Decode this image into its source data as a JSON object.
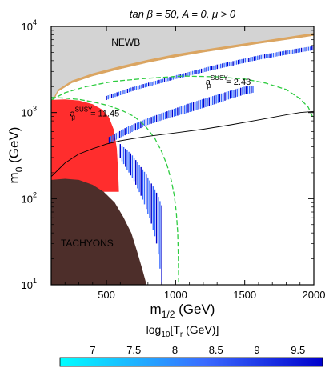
{
  "chart_data": {
    "type": "scatter",
    "title": "tan β = 50, A = 0, μ > 0",
    "xlabel": {
      "base": "m",
      "sub": "1/2",
      "rest": " (GeV)"
    },
    "ylabel": {
      "base": "m",
      "sub": "0",
      "rest": " (GeV)"
    },
    "x_scale": "linear",
    "y_scale": "log",
    "xlim": [
      100,
      2000
    ],
    "ylim": [
      10,
      10000
    ],
    "grid": false,
    "x_ticks": [
      {
        "value": 500,
        "label": "500"
      },
      {
        "value": 1000,
        "label": "1000"
      },
      {
        "value": 1500,
        "label": "1500"
      },
      {
        "value": 2000,
        "label": "2000"
      }
    ],
    "y_ticks": [
      {
        "value": 10,
        "base": "10",
        "exp": "1"
      },
      {
        "value": 100,
        "base": "10",
        "exp": "2"
      },
      {
        "value": 1000,
        "base": "10",
        "exp": "3"
      },
      {
        "value": 10000,
        "base": "10",
        "exp": "4"
      }
    ],
    "regions": [
      {
        "label": "NEWB",
        "color": "#d3d3d3",
        "boundary": [
          [
            100,
            10000
          ],
          [
            100,
            1200
          ],
          [
            150,
            1750
          ],
          [
            250,
            2200
          ],
          [
            400,
            2650
          ],
          [
            600,
            3200
          ],
          [
            800,
            3800
          ],
          [
            1000,
            4400
          ],
          [
            1200,
            5000
          ],
          [
            1400,
            5600
          ],
          [
            1600,
            6300
          ],
          [
            1800,
            7000
          ],
          [
            2000,
            7800
          ],
          [
            2000,
            10000
          ]
        ]
      },
      {
        "label": "",
        "color": "#dba561",
        "boundary": [
          [
            100,
            1200
          ],
          [
            150,
            1750
          ],
          [
            250,
            2200
          ],
          [
            400,
            2650
          ],
          [
            600,
            3200
          ],
          [
            800,
            3800
          ],
          [
            1000,
            4400
          ],
          [
            1200,
            5000
          ],
          [
            1400,
            5600
          ],
          [
            1600,
            6300
          ],
          [
            1800,
            7000
          ],
          [
            2000,
            7800
          ],
          [
            2000,
            8400
          ],
          [
            1800,
            7500
          ],
          [
            1600,
            6700
          ],
          [
            1400,
            6000
          ],
          [
            1200,
            5350
          ],
          [
            1000,
            4750
          ],
          [
            800,
            4100
          ],
          [
            600,
            3450
          ],
          [
            400,
            2850
          ],
          [
            250,
            2350
          ],
          [
            150,
            1850
          ],
          [
            100,
            1300
          ]
        ]
      },
      {
        "label": "",
        "color": "#ff2d2d",
        "boundary": [
          [
            100,
            1400
          ],
          [
            200,
            1420
          ],
          [
            300,
            1380
          ],
          [
            400,
            1250
          ],
          [
            470,
            1080
          ],
          [
            520,
            870
          ],
          [
            555,
            620
          ],
          [
            575,
            380
          ],
          [
            585,
            200
          ],
          [
            590,
            120
          ],
          [
            100,
            120
          ]
        ]
      },
      {
        "label": "TACHYONS",
        "color": "#4d2e2a",
        "boundary": [
          [
            100,
            10
          ],
          [
            100,
            165
          ],
          [
            200,
            170
          ],
          [
            300,
            165
          ],
          [
            400,
            145
          ],
          [
            480,
            120
          ],
          [
            560,
            90
          ],
          [
            620,
            62
          ],
          [
            680,
            40
          ],
          [
            720,
            25
          ],
          [
            760,
            15
          ],
          [
            790,
            10
          ]
        ]
      }
    ],
    "annotations": [
      {
        "base": "a",
        "sub": "μ",
        "sup": "SUSY",
        "value": " = 11.45",
        "at": [
          415,
          900
        ]
      },
      {
        "base": "a",
        "sub": "μ",
        "sup": "SUSY",
        "value": " = 2.43",
        "at": [
          1380,
          2100
        ]
      }
    ],
    "contours": [
      {
        "name": "a_mu_11.45",
        "color": "#2ecc40",
        "dash": true,
        "points": [
          [
            100,
            1500
          ],
          [
            200,
            1470
          ],
          [
            300,
            1420
          ],
          [
            400,
            1330
          ],
          [
            500,
            1220
          ],
          [
            600,
            1080
          ],
          [
            700,
            900
          ],
          [
            780,
            700
          ],
          [
            850,
            500
          ],
          [
            900,
            350
          ],
          [
            940,
            240
          ],
          [
            970,
            160
          ],
          [
            990,
            110
          ],
          [
            1005,
            70
          ],
          [
            1015,
            40
          ],
          [
            1020,
            20
          ],
          [
            1022,
            10
          ]
        ]
      },
      {
        "name": "a_mu_2.43",
        "color": "#2ecc40",
        "dash": true,
        "points": [
          [
            100,
            1400
          ],
          [
            200,
            1700
          ],
          [
            350,
            2000
          ],
          [
            550,
            2300
          ],
          [
            800,
            2500
          ],
          [
            1050,
            2650
          ],
          [
            1300,
            2600
          ],
          [
            1500,
            2450
          ],
          [
            1650,
            2200
          ],
          [
            1800,
            1850
          ],
          [
            1900,
            1450
          ],
          [
            1960,
            1150
          ],
          [
            1990,
            900
          ]
        ]
      },
      {
        "name": "boundary",
        "color": "#000000",
        "dash": false,
        "points": [
          [
            100,
            180
          ],
          [
            200,
            260
          ],
          [
            300,
            330
          ],
          [
            400,
            380
          ],
          [
            500,
            430
          ],
          [
            600,
            470
          ],
          [
            700,
            500
          ],
          [
            800,
            530
          ],
          [
            1000,
            580
          ],
          [
            1200,
            640
          ],
          [
            1400,
            720
          ],
          [
            1600,
            820
          ],
          [
            1800,
            940
          ],
          [
            1900,
            1000
          ],
          [
            2000,
            1030
          ]
        ]
      }
    ],
    "bands": [
      {
        "name": "upper-band",
        "lower": [
          [
            520,
            440
          ],
          [
            650,
            560
          ],
          [
            800,
            720
          ],
          [
            950,
            860
          ],
          [
            1100,
            1010
          ],
          [
            1250,
            1200
          ],
          [
            1400,
            1450
          ],
          [
            1500,
            1620
          ],
          [
            1560,
            1700
          ]
        ],
        "upper": [
          [
            520,
            520
          ],
          [
            650,
            680
          ],
          [
            800,
            860
          ],
          [
            950,
            1050
          ],
          [
            1100,
            1280
          ],
          [
            1250,
            1520
          ],
          [
            1400,
            1800
          ],
          [
            1500,
            2000
          ],
          [
            1560,
            2050
          ]
        ]
      },
      {
        "name": "thin-upper-band",
        "lower": [
          [
            500,
            1400
          ],
          [
            700,
            1800
          ],
          [
            1000,
            2450
          ],
          [
            1300,
            3200
          ],
          [
            1600,
            4100
          ],
          [
            1900,
            5000
          ],
          [
            2000,
            5300
          ]
        ],
        "upper": [
          [
            500,
            1560
          ],
          [
            700,
            2000
          ],
          [
            1000,
            2700
          ],
          [
            1300,
            3600
          ],
          [
            1600,
            4600
          ],
          [
            1900,
            5600
          ],
          [
            2000,
            5900
          ]
        ]
      },
      {
        "name": "lower-band",
        "lower": [
          [
            560,
            380
          ],
          [
            620,
            260
          ],
          [
            700,
            160
          ],
          [
            760,
            100
          ],
          [
            820,
            55
          ],
          [
            860,
            32
          ],
          [
            880,
            20
          ],
          [
            900,
            10
          ]
        ],
        "upper": [
          [
            600,
            430
          ],
          [
            680,
            330
          ],
          [
            780,
            200
          ],
          [
            860,
            120
          ],
          [
            920,
            70
          ],
          [
            960,
            40
          ],
          [
            980,
            25
          ],
          [
            990,
            10
          ]
        ]
      }
    ],
    "colorbar": {
      "label": {
        "base": "log",
        "sub": "10",
        "rest": "[T",
        "sub2": "r",
        "rest2": " (GeV)]"
      },
      "range": [
        6.6,
        9.8
      ],
      "ticks": [
        {
          "value": 7,
          "label": "7"
        },
        {
          "value": 7.5,
          "label": "7.5"
        },
        {
          "value": 8,
          "label": "8"
        },
        {
          "value": 8.5,
          "label": "8.5"
        },
        {
          "value": 9,
          "label": "9"
        },
        {
          "value": 9.5,
          "label": "9.5"
        }
      ],
      "colors": [
        "#00ffff",
        "#3a6bff",
        "#0000cc"
      ]
    }
  }
}
